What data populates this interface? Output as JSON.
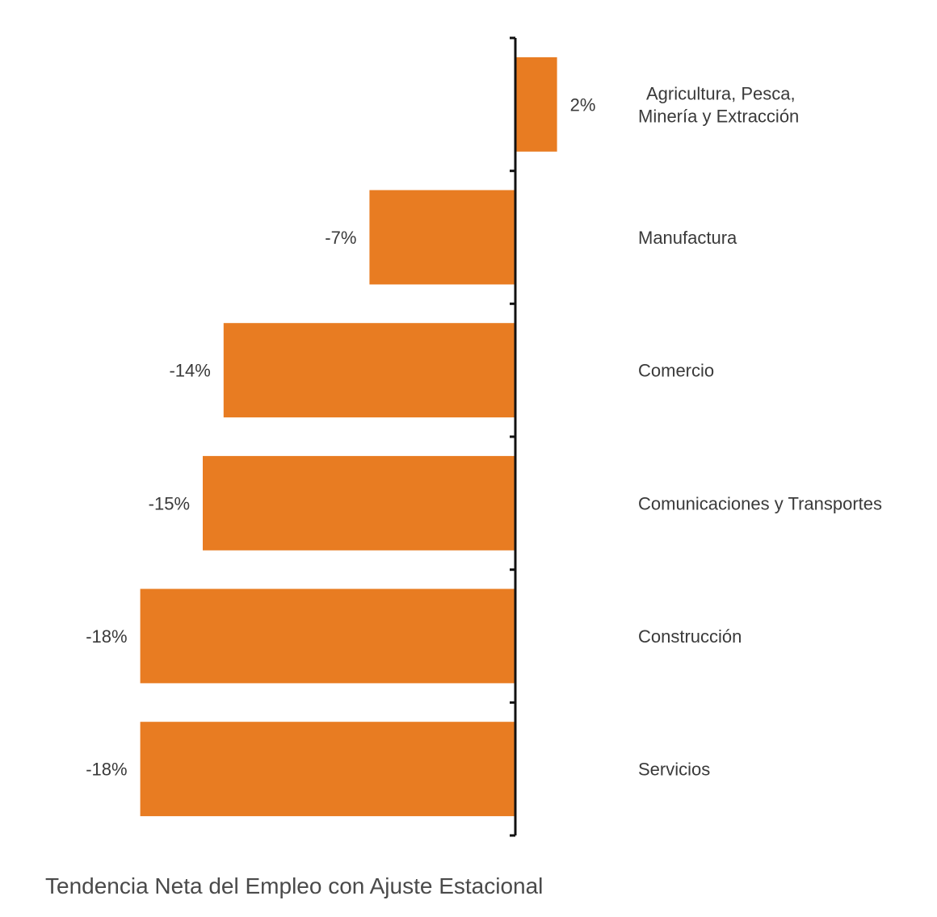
{
  "chart_data": {
    "type": "bar",
    "orientation": "horizontal",
    "categories": [
      "Agricultura, Pesca, Minería y Extracción",
      "Manufactura",
      "Comercio",
      "Comunicaciones y Transportes",
      "Construcción",
      "Servicios"
    ],
    "category_lines": [
      [
        "Agricultura, Pesca,",
        "Minería y Extracción"
      ],
      [
        "Manufactura"
      ],
      [
        "Comercio"
      ],
      [
        "Comunicaciones y Transportes"
      ],
      [
        "Construcción"
      ],
      [
        "Servicios"
      ]
    ],
    "values": [
      2,
      -7,
      -14,
      -15,
      -18,
      -18
    ],
    "value_labels": [
      "2%",
      "-7%",
      "-14%",
      "-15%",
      "-18%",
      "-18%"
    ],
    "unit": "%",
    "title": "Tendencia Neta del Empleo con Ajuste Estacional",
    "xlabel": "",
    "ylabel": "",
    "xlim": [
      -18,
      2
    ],
    "grid": false,
    "legend": "none",
    "colors": {
      "bar": "#E87C22",
      "axis": "#111111",
      "text": "#3a3a3a"
    }
  }
}
